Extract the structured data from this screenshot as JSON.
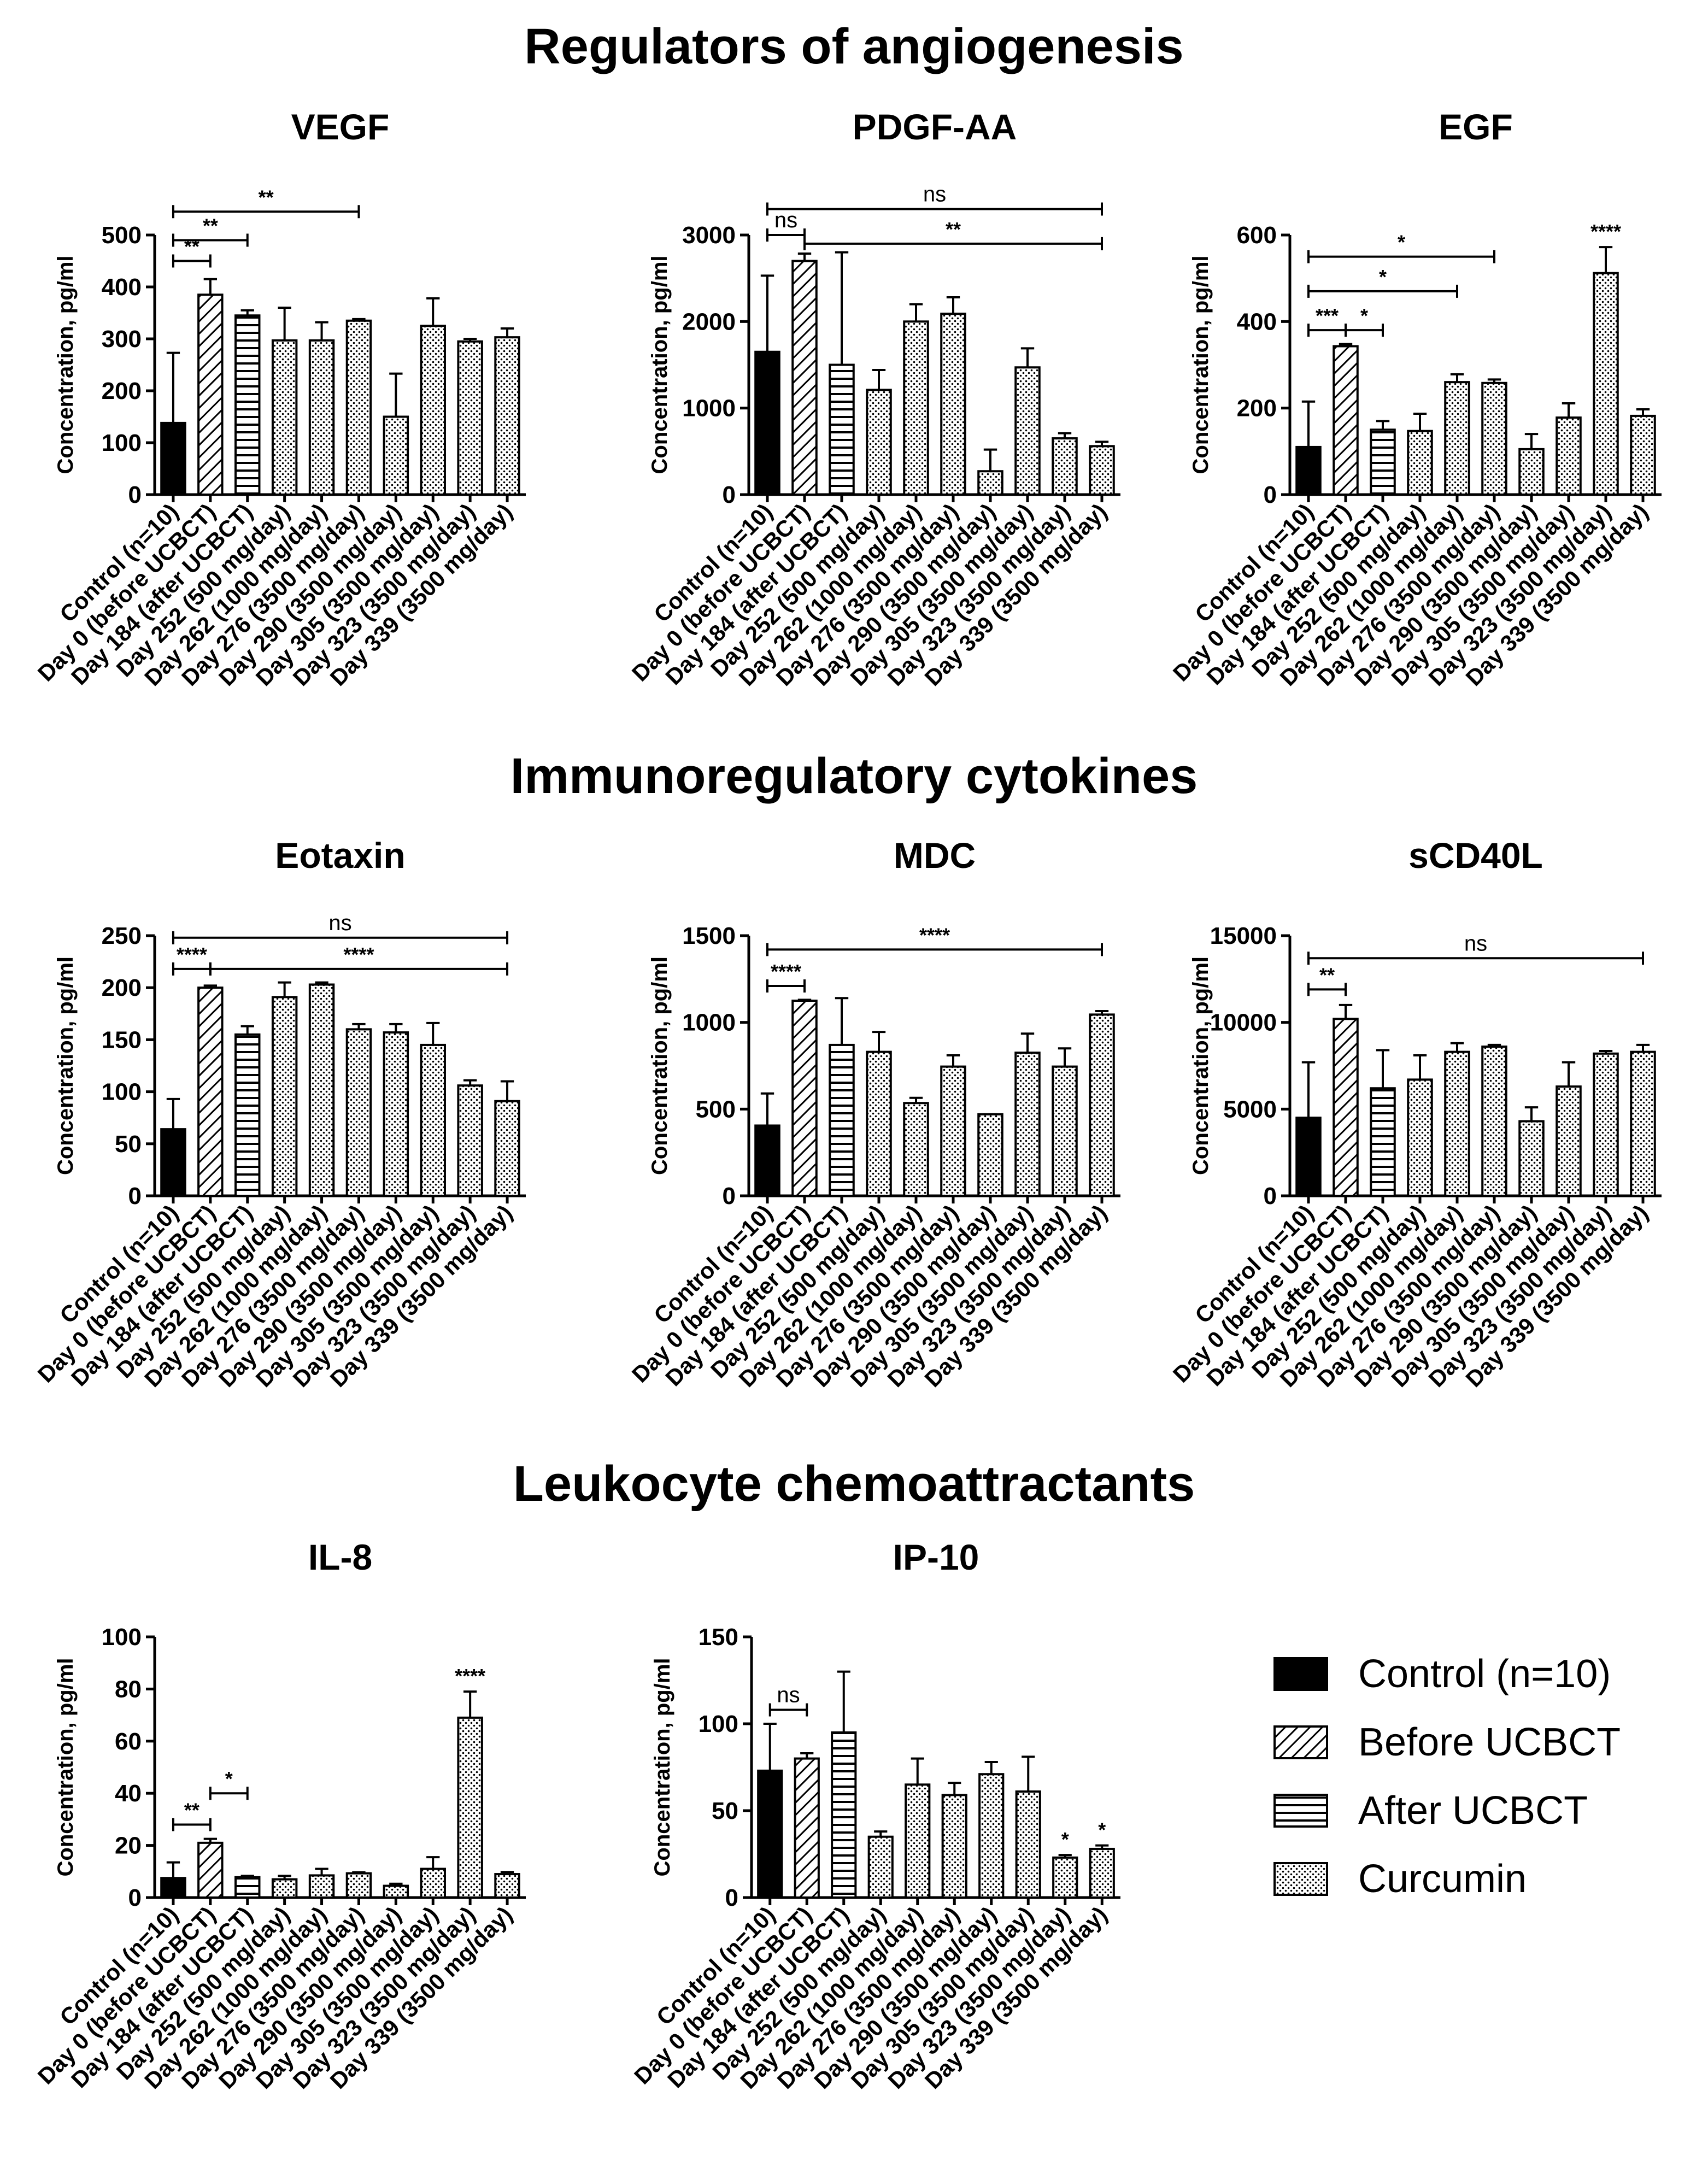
{
  "sections": [
    {
      "title": "Regulators of angiogenesis"
    },
    {
      "title": "Immunoregulatory cytokines"
    },
    {
      "title": "Leukocyte chemoattractants"
    }
  ],
  "legend": [
    {
      "label": "Control (n=10)",
      "pattern": "solid"
    },
    {
      "label": "Before UCBCT",
      "pattern": "diag"
    },
    {
      "label": "After UCBCT",
      "pattern": "horiz"
    },
    {
      "label": "Curcumin",
      "pattern": "dots"
    }
  ],
  "colors": {
    "bar_edge": "#000000",
    "control_fill": "#000000",
    "pattern_fill": "#ffffff"
  },
  "chart_data": [
    {
      "id": "vegf",
      "type": "bar",
      "title": "VEGF",
      "ylabel": "Concentration, pg/ml",
      "categories": [
        "Control (n=10)",
        "Day 0 (before UCBCT)",
        "Day 184 (after UCBCT)",
        "Day 252 (500 mg/day)",
        "Day 262 (1000 mg/day)",
        "Day 276 (3500 mg/day)",
        "Day 290 (3500 mg/day)",
        "Day 305 (3500 mg/day)",
        "Day 323 (3500 mg/day)",
        "Day 339 (3500 mg/day)"
      ],
      "patterns": [
        "solid",
        "diag",
        "horiz",
        "dots",
        "dots",
        "dots",
        "dots",
        "dots",
        "dots",
        "dots"
      ],
      "values": [
        138,
        385,
        345,
        297,
        297,
        335,
        150,
        325,
        295,
        303
      ],
      "errors": [
        135,
        30,
        10,
        63,
        35,
        3,
        83,
        53,
        5,
        17
      ],
      "ylim": [
        0,
        500
      ],
      "yticks": [
        "0",
        "100",
        "200",
        "300",
        "400",
        "500"
      ],
      "annotations": [
        {
          "from": 0,
          "to": 1,
          "label": "**",
          "y": 450
        },
        {
          "from": 0,
          "to": 2,
          "label": "**",
          "y": 490
        },
        {
          "from": 0,
          "to": 5,
          "label": "**",
          "y": 545
        }
      ],
      "bar_labels": []
    },
    {
      "id": "pdgf",
      "type": "bar",
      "title": "PDGF-AA",
      "ylabel": "Concentration, pg/ml",
      "categories": [
        "Control (n=10)",
        "Day 0 (before UCBCT)",
        "Day 184 (after UCBCT)",
        "Day 252 (500 mg/day)",
        "Day 262 (1000 mg/day)",
        "Day 276 (3500 mg/day)",
        "Day 290 (3500 mg/day)",
        "Day 305 (3500 mg/day)",
        "Day 323 (3500 mg/day)",
        "Day 339 (3500 mg/day)"
      ],
      "patterns": [
        "solid",
        "diag",
        "horiz",
        "dots",
        "dots",
        "dots",
        "dots",
        "dots",
        "dots",
        "dots"
      ],
      "values": [
        1650,
        2700,
        1500,
        1210,
        2000,
        2090,
        270,
        1470,
        650,
        560
      ],
      "errors": [
        880,
        85,
        1300,
        230,
        200,
        190,
        250,
        220,
        60,
        50
      ],
      "ylim": [
        0,
        3000
      ],
      "yticks": [
        "0",
        "1000",
        "2000",
        "3000"
      ],
      "annotations": [
        {
          "from": 0,
          "to": 1,
          "label": "ns",
          "y": 3000
        },
        {
          "from": 1,
          "to": 9,
          "label": "**",
          "y": 2900
        },
        {
          "from": 0,
          "to": 9,
          "label": "ns",
          "y": 3300
        }
      ],
      "bar_labels": []
    },
    {
      "id": "egf",
      "type": "bar",
      "title": "EGF",
      "ylabel": "Concentration, pg/ml",
      "categories": [
        "Control (n=10)",
        "Day 0 (before UCBCT)",
        "Day 184 (after UCBCT)",
        "Day 252 (500 mg/day)",
        "Day 262 (1000 mg/day)",
        "Day 276 (3500 mg/day)",
        "Day 290 (3500 mg/day)",
        "Day 305 (3500 mg/day)",
        "Day 323 (3500 mg/day)",
        "Day 339 (3500 mg/day)"
      ],
      "patterns": [
        "solid",
        "diag",
        "horiz",
        "dots",
        "dots",
        "dots",
        "dots",
        "dots",
        "dots",
        "dots"
      ],
      "values": [
        110,
        343,
        150,
        147,
        260,
        258,
        105,
        178,
        512,
        182
      ],
      "errors": [
        105,
        5,
        20,
        40,
        18,
        8,
        35,
        33,
        60,
        15
      ],
      "ylim": [
        0,
        600
      ],
      "yticks": [
        "0",
        "200",
        "400",
        "600"
      ],
      "annotations": [
        {
          "from": 0,
          "to": 1,
          "label": "***",
          "y": 380
        },
        {
          "from": 1,
          "to": 2,
          "label": "*",
          "y": 380
        },
        {
          "from": 0,
          "to": 4,
          "label": "*",
          "y": 470
        },
        {
          "from": 0,
          "to": 5,
          "label": "*",
          "y": 550
        }
      ],
      "bar_labels": [
        {
          "index": 8,
          "label": "****"
        }
      ]
    },
    {
      "id": "eotaxin",
      "type": "bar",
      "title": "Eotaxin",
      "ylabel": "Concentration, pg/ml",
      "categories": [
        "Control (n=10)",
        "Day 0 (before UCBCT)",
        "Day 184 (after UCBCT)",
        "Day 252 (500 mg/day)",
        "Day 262 (1000 mg/day)",
        "Day 276 (3500 mg/day)",
        "Day 290 (3500 mg/day)",
        "Day 305 (3500 mg/day)",
        "Day 323 (3500 mg/day)",
        "Day 339 (3500 mg/day)"
      ],
      "patterns": [
        "solid",
        "diag",
        "horiz",
        "dots",
        "dots",
        "dots",
        "dots",
        "dots",
        "dots",
        "dots"
      ],
      "values": [
        64,
        200,
        155,
        191,
        203,
        160,
        157,
        145,
        106,
        91
      ],
      "errors": [
        29,
        2,
        8,
        14,
        2,
        5,
        8,
        21,
        5,
        19
      ],
      "ylim": [
        0,
        250
      ],
      "yticks": [
        "0",
        "50",
        "100",
        "150",
        "200",
        "250"
      ],
      "annotations": [
        {
          "from": 0,
          "to": 1,
          "label": "****",
          "y": 218
        },
        {
          "from": 1,
          "to": 9,
          "label": "****",
          "y": 218
        },
        {
          "from": 0,
          "to": 9,
          "label": "ns",
          "y": 248
        }
      ],
      "bar_labels": []
    },
    {
      "id": "mdc",
      "type": "bar",
      "title": "MDC",
      "ylabel": "Concentration, pg/ml",
      "categories": [
        "Control (n=10)",
        "Day 0 (before UCBCT)",
        "Day 184 (after UCBCT)",
        "Day 252 (500 mg/day)",
        "Day 262 (1000 mg/day)",
        "Day 276 (3500 mg/day)",
        "Day 290 (3500 mg/day)",
        "Day 305 (3500 mg/day)",
        "Day 323 (3500 mg/day)",
        "Day 339 (3500 mg/day)"
      ],
      "patterns": [
        "solid",
        "diag",
        "horiz",
        "dots",
        "dots",
        "dots",
        "dots",
        "dots",
        "dots",
        "dots"
      ],
      "values": [
        405,
        1125,
        870,
        830,
        535,
        745,
        470,
        825,
        745,
        1045
      ],
      "errors": [
        185,
        5,
        270,
        115,
        30,
        65,
        0,
        110,
        105,
        20
      ],
      "ylim": [
        0,
        1500
      ],
      "yticks": [
        "0",
        "500",
        "1000",
        "1500"
      ],
      "annotations": [
        {
          "from": 0,
          "to": 1,
          "label": "****",
          "y": 1210
        },
        {
          "from": 0,
          "to": 9,
          "label": "****",
          "y": 1420
        }
      ],
      "bar_labels": []
    },
    {
      "id": "scd40l",
      "type": "bar",
      "title": "sCD40L",
      "ylabel": "Concentration, pg/ml",
      "categories": [
        "Control (n=10)",
        "Day 0 (before UCBCT)",
        "Day 184 (after UCBCT)",
        "Day 252 (500 mg/day)",
        "Day 262 (1000 mg/day)",
        "Day 276 (3500 mg/day)",
        "Day 290 (3500 mg/day)",
        "Day 305 (3500 mg/day)",
        "Day 323 (3500 mg/day)",
        "Day 339 (3500 mg/day)"
      ],
      "patterns": [
        "solid",
        "diag",
        "horiz",
        "dots",
        "dots",
        "dots",
        "dots",
        "dots",
        "dots",
        "dots"
      ],
      "values": [
        4500,
        10200,
        6200,
        6700,
        8300,
        8600,
        4300,
        6300,
        8200,
        8300
      ],
      "errors": [
        3200,
        800,
        2200,
        1400,
        500,
        100,
        800,
        1400,
        150,
        400
      ],
      "ylim": [
        0,
        15000
      ],
      "yticks": [
        "0",
        "5000",
        "10000",
        "15000"
      ],
      "annotations": [
        {
          "from": 0,
          "to": 1,
          "label": "**",
          "y": 11900
        },
        {
          "from": 0,
          "to": 9,
          "label": "ns",
          "y": 13700
        }
      ],
      "bar_labels": []
    },
    {
      "id": "il8",
      "type": "bar",
      "title": "IL-8",
      "ylabel": "Concentration, pg/ml",
      "categories": [
        "Control (n=10)",
        "Day 0 (before UCBCT)",
        "Day 184 (after UCBCT)",
        "Day 252 (500 mg/day)",
        "Day 262 (1000 mg/day)",
        "Day 276 (3500 mg/day)",
        "Day 290 (3500 mg/day)",
        "Day 305 (3500 mg/day)",
        "Day 323 (3500 mg/day)",
        "Day 339 (3500 mg/day)"
      ],
      "patterns": [
        "solid",
        "diag",
        "horiz",
        "dots",
        "dots",
        "dots",
        "dots",
        "dots",
        "dots",
        "dots"
      ],
      "values": [
        7.5,
        21,
        7.8,
        7,
        8.5,
        9.3,
        4.5,
        11,
        69,
        9
      ],
      "errors": [
        6,
        1.5,
        0.5,
        1.3,
        2.5,
        0.4,
        0.8,
        4.5,
        10,
        0.8
      ],
      "ylim": [
        0,
        100
      ],
      "yticks": [
        "0",
        "20",
        "40",
        "60",
        "80",
        "100"
      ],
      "annotations": [
        {
          "from": 0,
          "to": 1,
          "label": "**",
          "y": 28
        },
        {
          "from": 1,
          "to": 2,
          "label": "*",
          "y": 40
        }
      ],
      "bar_labels": [
        {
          "index": 8,
          "label": "****"
        }
      ]
    },
    {
      "id": "ip10",
      "type": "bar",
      "title": "IP-10",
      "ylabel": "Concentration, pg/ml",
      "categories": [
        "Control (n=10)",
        "Day 0 (before UCBCT)",
        "Day 184 (after UCBCT)",
        "Day 252 (500 mg/day)",
        "Day 262 (1000 mg/day)",
        "Day 276 (3500 mg/day)",
        "Day 290 (3500 mg/day)",
        "Day 305 (3500 mg/day)",
        "Day 323 (3500 mg/day)",
        "Day 339 (3500 mg/day)"
      ],
      "patterns": [
        "solid",
        "diag",
        "horiz",
        "dots",
        "dots",
        "dots",
        "dots",
        "dots",
        "dots",
        "dots"
      ],
      "values": [
        73,
        80,
        95,
        35,
        65,
        59,
        71,
        61,
        23,
        28
      ],
      "errors": [
        27,
        3,
        35,
        3,
        15,
        7,
        7,
        20,
        1.5,
        2
      ],
      "ylim": [
        0,
        150
      ],
      "yticks": [
        "0",
        "50",
        "100",
        "150"
      ],
      "annotations": [
        {
          "from": 0,
          "to": 1,
          "label": "ns",
          "y": 108
        }
      ],
      "bar_labels": [
        {
          "index": 8,
          "label": "*"
        },
        {
          "index": 9,
          "label": "*"
        }
      ]
    }
  ]
}
